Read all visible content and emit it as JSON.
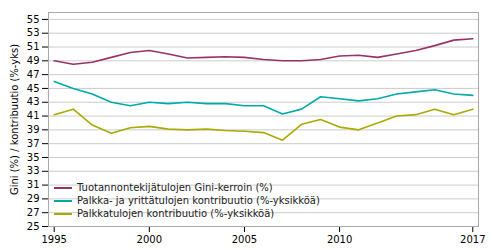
{
  "chart_data": {
    "type": "line",
    "x": [
      1995,
      1996,
      1997,
      1998,
      1999,
      2000,
      2001,
      2002,
      2003,
      2004,
      2005,
      2006,
      2007,
      2008,
      2009,
      2010,
      2011,
      2012,
      2013,
      2014,
      2015,
      2016,
      2017
    ],
    "series": [
      {
        "name": "Tuotannontekijätulojen Gini-kerroin (%)",
        "color": "#993366",
        "values": [
          49.0,
          48.5,
          48.8,
          49.5,
          50.2,
          50.5,
          50.0,
          49.4,
          49.5,
          49.6,
          49.5,
          49.2,
          49.0,
          49.0,
          49.2,
          49.7,
          49.8,
          49.5,
          50.0,
          50.5,
          51.2,
          52.0,
          52.2
        ]
      },
      {
        "name": "Palkka- ja yrittätulojen kontribuutio (%-yksikköä)",
        "color": "#00AAAA",
        "values": [
          46.0,
          45.0,
          44.2,
          43.0,
          42.5,
          43.0,
          42.8,
          43.0,
          42.8,
          42.8,
          42.5,
          42.5,
          41.3,
          42.0,
          43.8,
          43.5,
          43.2,
          43.5,
          44.2,
          44.5,
          44.8,
          44.2,
          44.0
        ]
      },
      {
        "name": "Palkkatulojen kontribuutio (%-yksikköä)",
        "color": "#AAAA00",
        "values": [
          41.2,
          42.0,
          39.7,
          38.5,
          39.3,
          39.5,
          39.1,
          39.0,
          39.1,
          38.9,
          38.8,
          38.6,
          37.5,
          39.8,
          40.5,
          39.4,
          39.0,
          40.0,
          41.0,
          41.2,
          42.0,
          41.2,
          42.0
        ]
      }
    ],
    "ylabel": "Gini (%) / kontribuutio (%-yks)",
    "xlim": [
      1994.7,
      2017.3
    ],
    "xticks": [
      1995,
      2000,
      2005,
      2010,
      2017
    ],
    "ylim": [
      25,
      56
    ],
    "yticks": [
      25,
      27,
      29,
      31,
      33,
      35,
      37,
      39,
      41,
      43,
      45,
      47,
      49,
      51,
      53,
      55
    ],
    "grid": true,
    "legend": "lower left"
  }
}
